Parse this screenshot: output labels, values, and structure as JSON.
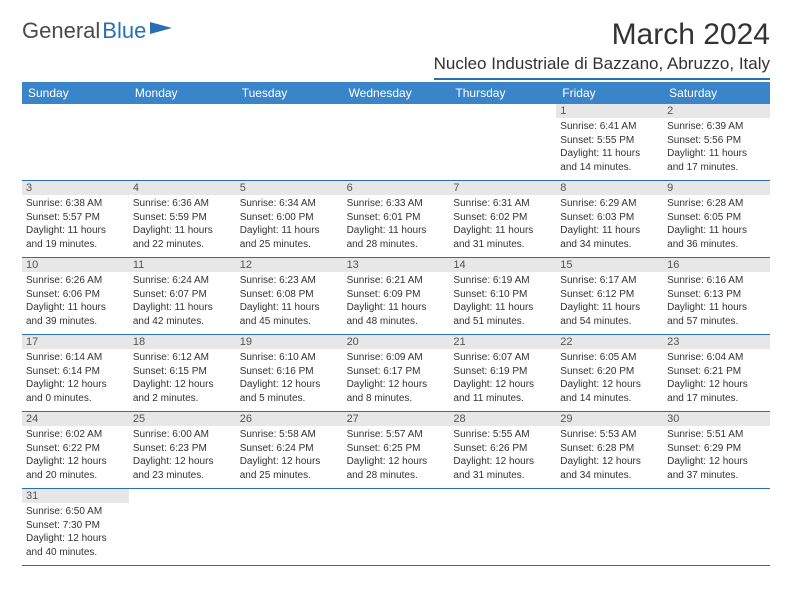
{
  "brand": {
    "part1": "General",
    "part2": "Blue"
  },
  "title": "March 2024",
  "location": "Nucleo Industriale di Bazzano, Abruzzo, Italy",
  "colors": {
    "header_bg": "#3a85c9",
    "header_text": "#ffffff",
    "rule": "#2a6fb5",
    "daynum_bg": "#e7e7e7",
    "text": "#333333"
  },
  "day_labels": [
    "Sunday",
    "Monday",
    "Tuesday",
    "Wednesday",
    "Thursday",
    "Friday",
    "Saturday"
  ],
  "days": {
    "1": {
      "sunrise": "Sunrise: 6:41 AM",
      "sunset": "Sunset: 5:55 PM",
      "daylight": "Daylight: 11 hours and 14 minutes."
    },
    "2": {
      "sunrise": "Sunrise: 6:39 AM",
      "sunset": "Sunset: 5:56 PM",
      "daylight": "Daylight: 11 hours and 17 minutes."
    },
    "3": {
      "sunrise": "Sunrise: 6:38 AM",
      "sunset": "Sunset: 5:57 PM",
      "daylight": "Daylight: 11 hours and 19 minutes."
    },
    "4": {
      "sunrise": "Sunrise: 6:36 AM",
      "sunset": "Sunset: 5:59 PM",
      "daylight": "Daylight: 11 hours and 22 minutes."
    },
    "5": {
      "sunrise": "Sunrise: 6:34 AM",
      "sunset": "Sunset: 6:00 PM",
      "daylight": "Daylight: 11 hours and 25 minutes."
    },
    "6": {
      "sunrise": "Sunrise: 6:33 AM",
      "sunset": "Sunset: 6:01 PM",
      "daylight": "Daylight: 11 hours and 28 minutes."
    },
    "7": {
      "sunrise": "Sunrise: 6:31 AM",
      "sunset": "Sunset: 6:02 PM",
      "daylight": "Daylight: 11 hours and 31 minutes."
    },
    "8": {
      "sunrise": "Sunrise: 6:29 AM",
      "sunset": "Sunset: 6:03 PM",
      "daylight": "Daylight: 11 hours and 34 minutes."
    },
    "9": {
      "sunrise": "Sunrise: 6:28 AM",
      "sunset": "Sunset: 6:05 PM",
      "daylight": "Daylight: 11 hours and 36 minutes."
    },
    "10": {
      "sunrise": "Sunrise: 6:26 AM",
      "sunset": "Sunset: 6:06 PM",
      "daylight": "Daylight: 11 hours and 39 minutes."
    },
    "11": {
      "sunrise": "Sunrise: 6:24 AM",
      "sunset": "Sunset: 6:07 PM",
      "daylight": "Daylight: 11 hours and 42 minutes."
    },
    "12": {
      "sunrise": "Sunrise: 6:23 AM",
      "sunset": "Sunset: 6:08 PM",
      "daylight": "Daylight: 11 hours and 45 minutes."
    },
    "13": {
      "sunrise": "Sunrise: 6:21 AM",
      "sunset": "Sunset: 6:09 PM",
      "daylight": "Daylight: 11 hours and 48 minutes."
    },
    "14": {
      "sunrise": "Sunrise: 6:19 AM",
      "sunset": "Sunset: 6:10 PM",
      "daylight": "Daylight: 11 hours and 51 minutes."
    },
    "15": {
      "sunrise": "Sunrise: 6:17 AM",
      "sunset": "Sunset: 6:12 PM",
      "daylight": "Daylight: 11 hours and 54 minutes."
    },
    "16": {
      "sunrise": "Sunrise: 6:16 AM",
      "sunset": "Sunset: 6:13 PM",
      "daylight": "Daylight: 11 hours and 57 minutes."
    },
    "17": {
      "sunrise": "Sunrise: 6:14 AM",
      "sunset": "Sunset: 6:14 PM",
      "daylight": "Daylight: 12 hours and 0 minutes."
    },
    "18": {
      "sunrise": "Sunrise: 6:12 AM",
      "sunset": "Sunset: 6:15 PM",
      "daylight": "Daylight: 12 hours and 2 minutes."
    },
    "19": {
      "sunrise": "Sunrise: 6:10 AM",
      "sunset": "Sunset: 6:16 PM",
      "daylight": "Daylight: 12 hours and 5 minutes."
    },
    "20": {
      "sunrise": "Sunrise: 6:09 AM",
      "sunset": "Sunset: 6:17 PM",
      "daylight": "Daylight: 12 hours and 8 minutes."
    },
    "21": {
      "sunrise": "Sunrise: 6:07 AM",
      "sunset": "Sunset: 6:19 PM",
      "daylight": "Daylight: 12 hours and 11 minutes."
    },
    "22": {
      "sunrise": "Sunrise: 6:05 AM",
      "sunset": "Sunset: 6:20 PM",
      "daylight": "Daylight: 12 hours and 14 minutes."
    },
    "23": {
      "sunrise": "Sunrise: 6:04 AM",
      "sunset": "Sunset: 6:21 PM",
      "daylight": "Daylight: 12 hours and 17 minutes."
    },
    "24": {
      "sunrise": "Sunrise: 6:02 AM",
      "sunset": "Sunset: 6:22 PM",
      "daylight": "Daylight: 12 hours and 20 minutes."
    },
    "25": {
      "sunrise": "Sunrise: 6:00 AM",
      "sunset": "Sunset: 6:23 PM",
      "daylight": "Daylight: 12 hours and 23 minutes."
    },
    "26": {
      "sunrise": "Sunrise: 5:58 AM",
      "sunset": "Sunset: 6:24 PM",
      "daylight": "Daylight: 12 hours and 25 minutes."
    },
    "27": {
      "sunrise": "Sunrise: 5:57 AM",
      "sunset": "Sunset: 6:25 PM",
      "daylight": "Daylight: 12 hours and 28 minutes."
    },
    "28": {
      "sunrise": "Sunrise: 5:55 AM",
      "sunset": "Sunset: 6:26 PM",
      "daylight": "Daylight: 12 hours and 31 minutes."
    },
    "29": {
      "sunrise": "Sunrise: 5:53 AM",
      "sunset": "Sunset: 6:28 PM",
      "daylight": "Daylight: 12 hours and 34 minutes."
    },
    "30": {
      "sunrise": "Sunrise: 5:51 AM",
      "sunset": "Sunset: 6:29 PM",
      "daylight": "Daylight: 12 hours and 37 minutes."
    },
    "31": {
      "sunrise": "Sunrise: 6:50 AM",
      "sunset": "Sunset: 7:30 PM",
      "daylight": "Daylight: 12 hours and 40 minutes."
    }
  },
  "layout": {
    "weeks": [
      [
        null,
        null,
        null,
        null,
        null,
        "1",
        "2"
      ],
      [
        "3",
        "4",
        "5",
        "6",
        "7",
        "8",
        "9"
      ],
      [
        "10",
        "11",
        "12",
        "13",
        "14",
        "15",
        "16"
      ],
      [
        "17",
        "18",
        "19",
        "20",
        "21",
        "22",
        "23"
      ],
      [
        "24",
        "25",
        "26",
        "27",
        "28",
        "29",
        "30"
      ],
      [
        "31",
        null,
        null,
        null,
        null,
        null,
        null
      ]
    ]
  }
}
